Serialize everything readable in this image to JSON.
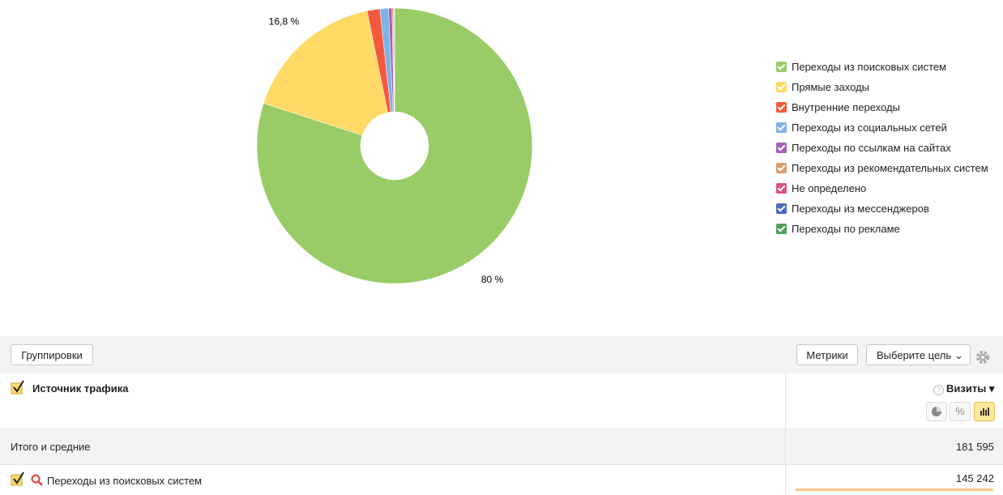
{
  "chart_data": {
    "type": "pie",
    "categories": [
      "Переходы из поисковых систем",
      "Прямые заходы",
      "Внутренние переходы",
      "Переходы из социальных сетей",
      "Переходы по ссылкам на сайтах",
      "Переходы из рекомендательных систем",
      "Не определено",
      "Переходы из мессенджеров",
      "Переходы по рекламе"
    ],
    "values": [
      80,
      16.8,
      1.5,
      1.0,
      0.4,
      0.15,
      0.1,
      0.03,
      0.02
    ],
    "value_labels": [
      "80 %",
      "16,8 %",
      null,
      null,
      null,
      null,
      null,
      null,
      null
    ],
    "colors": [
      "#99cc66",
      "#ffd966",
      "#f5593d",
      "#7fb2e5",
      "#a05fb8",
      "#d99e6a",
      "#e0507a",
      "#4e6bbf",
      "#4e9f5c"
    ],
    "legend": "right"
  },
  "toolbar": {
    "groupings": "Группировки",
    "metrics": "Метрики",
    "goal": "Выберите цель"
  },
  "table": {
    "dimension": "Источник трафика",
    "metric": "Визиты",
    "totals": {
      "label": "Итого и средние",
      "value": "181 595"
    },
    "rows": [
      {
        "label": "Переходы из поисковых систем",
        "value": "145 242"
      }
    ]
  }
}
